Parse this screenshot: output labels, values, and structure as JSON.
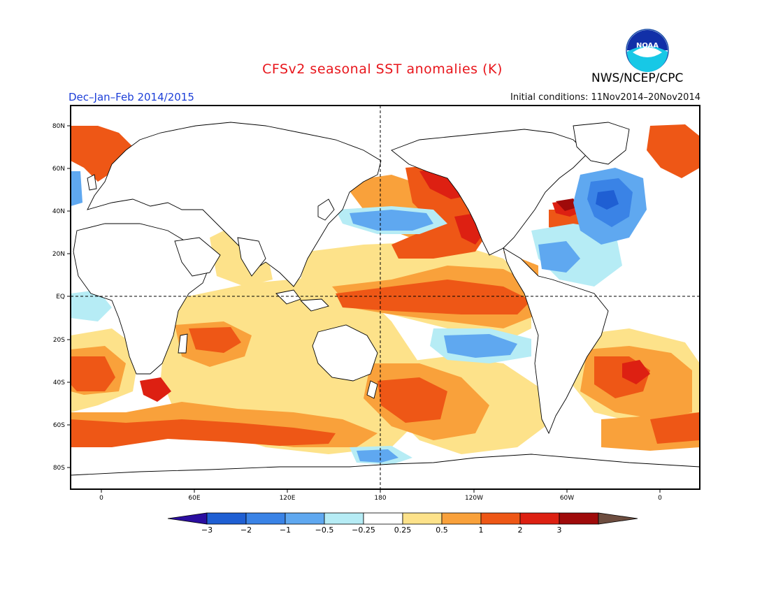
{
  "title": "CFSv2 seasonal SST anomalies (K)",
  "agency": "NWS/NCEP/CPC",
  "logo_text": "NOAA",
  "season": "Dec–Jan–Feb 2014/2015",
  "initial_conditions": "Initial conditions: 11Nov2014–20Nov2014",
  "colors": {
    "title": "#e8151b",
    "season": "#1d3fd8"
  },
  "axes": {
    "lon_ticks": [
      "0",
      "60E",
      "120E",
      "180",
      "120W",
      "60W",
      "0"
    ],
    "lat_ticks": [
      "80N",
      "60N",
      "40N",
      "20N",
      "EQ",
      "20S",
      "40S",
      "60S",
      "80S"
    ]
  },
  "colorbar": {
    "labels": [
      "−3",
      "−2",
      "−1",
      "−0.5",
      "−0.25",
      "0.25",
      "0.5",
      "1",
      "2",
      "3"
    ],
    "colors": [
      "#2b0ea0",
      "#1f5fd3",
      "#3a83e6",
      "#5fa8f0",
      "#b6ecf5",
      "#ffffff",
      "#fde28a",
      "#f9a13b",
      "#ee5716",
      "#dd2012",
      "#9f0a0a",
      "#6d4d3f"
    ]
  }
}
